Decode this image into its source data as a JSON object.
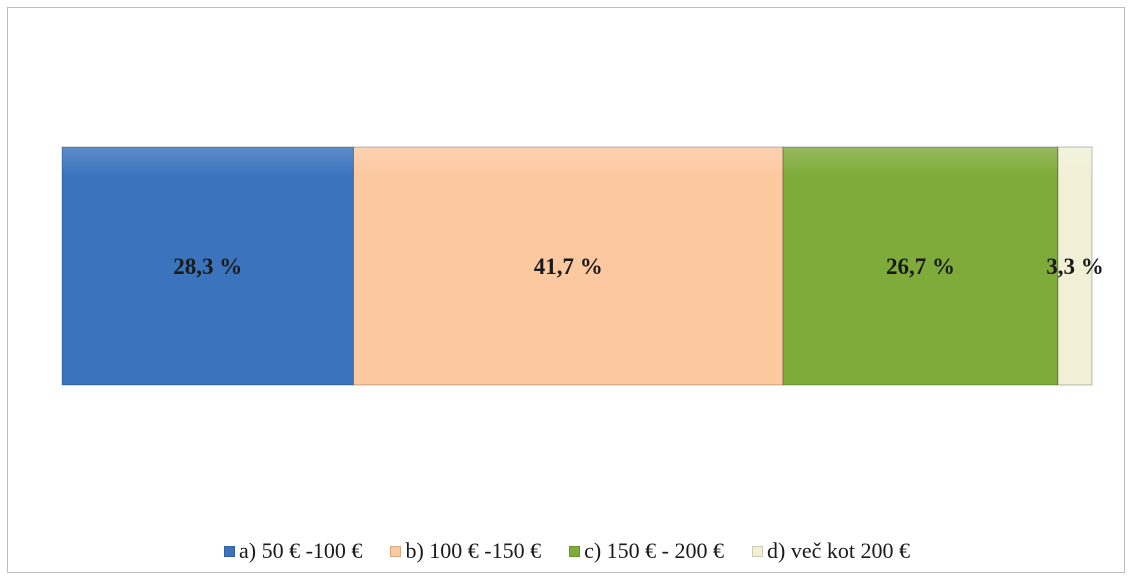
{
  "chart_data": {
    "type": "bar",
    "orientation": "horizontal",
    "stacked": true,
    "percent_stacked": true,
    "categories": [
      ""
    ],
    "series": [
      {
        "name": "a) 50 € -100 €",
        "values": [
          28.3
        ],
        "label": "28,3 %",
        "color": "#3b74bd"
      },
      {
        "name": "b) 100 € -150 €",
        "values": [
          41.7
        ],
        "label": "41,7 %",
        "color": "#fcc8a0"
      },
      {
        "name": "c) 150 € - 200 €",
        "values": [
          26.7
        ],
        "label": "26,7 %",
        "color": "#7fab3a"
      },
      {
        "name": "d) več kot 200 €",
        "values": [
          3.3
        ],
        "label": "3,3 %",
        "color": "#f1f0d6"
      }
    ],
    "xlim": [
      0,
      100
    ],
    "grid": false,
    "legend_position": "bottom"
  }
}
